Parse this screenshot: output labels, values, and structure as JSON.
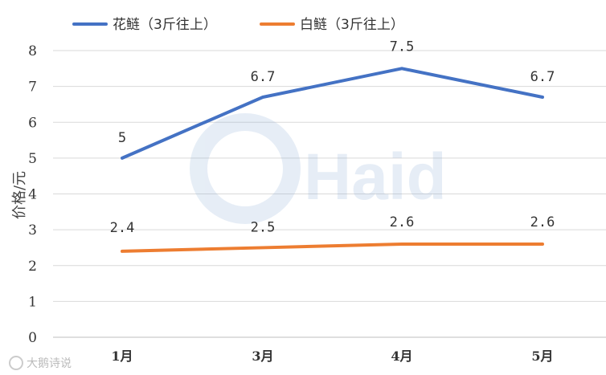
{
  "chart_data": {
    "type": "line",
    "categories": [
      "1月",
      "3月",
      "4月",
      "5月"
    ],
    "series": [
      {
        "name": "花鲢（3斤往上）",
        "values": [
          5,
          6.7,
          7.5,
          6.7
        ],
        "labels": [
          "5",
          "6.7",
          "7.5",
          "6.7"
        ],
        "color": "#4472C4"
      },
      {
        "name": "白鲢（3斤往上）",
        "values": [
          2.4,
          2.5,
          2.6,
          2.6
        ],
        "labels": [
          "2.4",
          "2.5",
          "2.6",
          "2.6"
        ],
        "color": "#ED7D31"
      }
    ],
    "ylabel": "价格/元",
    "xlabel": "",
    "ylim": [
      0,
      8
    ],
    "yticks": [
      "0",
      "1",
      "2",
      "3",
      "4",
      "5",
      "6",
      "7",
      "8"
    ],
    "grid": true,
    "legend_position": "top-left"
  },
  "watermark": {
    "text": "Haid",
    "color": "#8fb0d8"
  },
  "corner_mark": {
    "text": "大鹅诗说",
    "icon": "logo-badge-icon"
  }
}
